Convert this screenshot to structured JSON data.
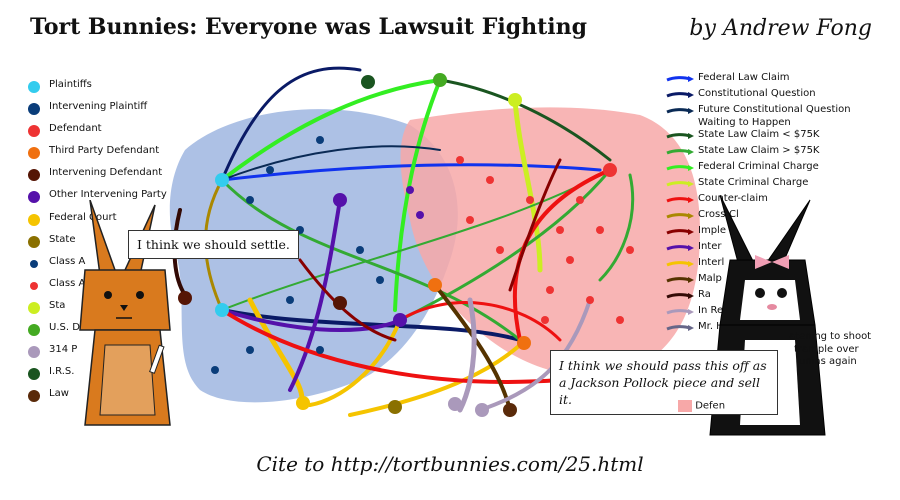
{
  "header": {
    "title": "Tort Bunnies: Everyone was Lawsuit Fighting",
    "byline": "by Andrew Fong"
  },
  "footer": {
    "cite": "Cite to http://tortbunnies.com/25.html"
  },
  "legend_parties": [
    {
      "label": "Plaintiffs",
      "color": "#33ccee"
    },
    {
      "label": "Intervening Plaintiff",
      "color": "#0a3d7a"
    },
    {
      "label": "Defendant",
      "color": "#ee3333"
    },
    {
      "label": "Third Party Defendant",
      "color": "#f07010"
    },
    {
      "label": "Intervening Defendant",
      "color": "#551505"
    },
    {
      "label": "Other Intervening Party",
      "color": "#5511aa"
    },
    {
      "label": "Federal Court",
      "color": "#f5c400"
    },
    {
      "label": "State",
      "color": "#8a7000"
    },
    {
      "label": "Class A",
      "color": "#0a3d7a",
      "small": true
    },
    {
      "label": "Class A",
      "color": "#ee3333",
      "small": true
    },
    {
      "label": "Sta",
      "color": "#ccee22"
    },
    {
      "label": "U.S. De",
      "color": "#44aa22"
    },
    {
      "label": "314 P",
      "color": "#aa99bb"
    },
    {
      "label": "I.R.S.",
      "color": "#1a5520"
    },
    {
      "label": "Law",
      "color": "#5a2a0a"
    }
  ],
  "legend_claims": [
    {
      "label": "Federal Law Claim",
      "color": "#1133ee"
    },
    {
      "label": "Constitutional Question",
      "color": "#0a1a66"
    },
    {
      "label": "Future Constitutional Question Waiting to Happen",
      "color": "#0a2a55"
    },
    {
      "label": "State Law Claim < $75K",
      "color": "#1a5520"
    },
    {
      "label": "State Law Claim > $75K",
      "color": "#33aa33"
    },
    {
      "label": "Federal Criminal Charge",
      "color": "#33ee22"
    },
    {
      "label": "State Criminal Charge",
      "color": "#ccee22"
    },
    {
      "label": "Counter-claim",
      "color": "#ee1111"
    },
    {
      "label": "Cross-Cl",
      "color": "#aa8800"
    },
    {
      "label": "Imple",
      "color": "#880000"
    },
    {
      "label": "Inter",
      "color": "#5511aa"
    },
    {
      "label": "Interl",
      "color": "#f5c400"
    },
    {
      "label": "Malp",
      "color": "#553300"
    },
    {
      "label": "Ra",
      "color": "#330a05"
    },
    {
      "label": "In Re",
      "color": "#aa99bb"
    },
    {
      "label": "Mr. H",
      "color": "#666688"
    }
  ],
  "legend_misc": {
    "defen_label": "Defen",
    "tail_text": "atening to shoot",
    "tail_text2": "trample over",
    "tail_text3": "unias again"
  },
  "bubbles": {
    "left": "I think we should settle.",
    "right": "I think we should pass this off as a Jackson Pollock piece and sell it."
  },
  "colors": {
    "blue_region": "#9fb6e0",
    "pink_region": "#f7a8a8"
  }
}
